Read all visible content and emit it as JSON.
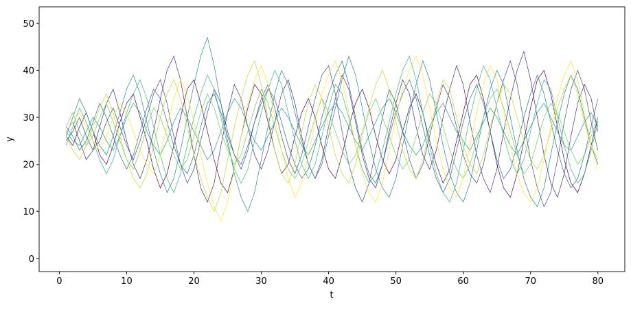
{
  "chart_data": {
    "type": "line",
    "x_label": "t",
    "y_label": "y",
    "xlim": [
      -3,
      84
    ],
    "ylim": [
      -2.8,
      53.5
    ],
    "xticks": [
      0,
      10,
      20,
      30,
      40,
      50,
      60,
      70,
      80
    ],
    "yticks": [
      0,
      10,
      20,
      30,
      40,
      50
    ],
    "grid": false,
    "x": [
      1,
      2,
      3,
      4,
      5,
      6,
      7,
      8,
      9,
      10,
      11,
      12,
      13,
      14,
      15,
      16,
      17,
      18,
      19,
      20,
      21,
      22,
      23,
      24,
      25,
      26,
      27,
      28,
      29,
      30,
      31,
      32,
      33,
      34,
      35,
      36,
      37,
      38,
      39,
      40,
      41,
      42,
      43,
      44,
      45,
      46,
      47,
      48,
      49,
      50,
      51,
      52,
      53,
      54,
      55,
      56,
      57,
      58,
      59,
      60,
      61,
      62,
      63,
      64,
      65,
      66,
      67,
      68,
      69,
      70,
      71,
      72,
      73,
      74,
      75,
      76,
      77,
      78,
      79,
      80
    ],
    "series": [
      {
        "color": "#440154",
        "values": [
          26,
          24,
          28,
          31,
          27,
          22,
          20,
          24,
          29,
          33,
          35,
          30,
          25,
          19,
          15,
          18,
          24,
          30,
          36,
          38,
          33,
          27,
          21,
          16,
          14,
          19,
          26,
          32,
          37,
          35,
          29,
          23,
          18,
          20,
          26,
          31,
          34,
          30,
          24,
          19,
          17,
          22,
          28,
          33,
          36,
          32,
          26,
          21,
          18,
          21,
          27,
          32,
          35,
          31,
          25,
          20,
          16,
          19,
          25,
          31,
          37,
          39,
          34,
          27,
          20,
          15,
          13,
          18,
          25,
          32,
          38,
          40,
          35,
          28,
          21,
          16,
          14,
          18,
          24,
          30
        ]
      },
      {
        "color": "#482878",
        "values": [
          27,
          29,
          25,
          21,
          23,
          28,
          33,
          36,
          31,
          25,
          20,
          17,
          21,
          27,
          34,
          40,
          43,
          38,
          30,
          22,
          15,
          12,
          16,
          24,
          31,
          37,
          34,
          28,
          22,
          19,
          23,
          29,
          35,
          38,
          33,
          26,
          20,
          17,
          21,
          28,
          34,
          39,
          36,
          29,
          22,
          17,
          15,
          20,
          27,
          33,
          38,
          35,
          28,
          22,
          19,
          23,
          30,
          36,
          41,
          37,
          29,
          22,
          17,
          14,
          19,
          27,
          34,
          40,
          44,
          38,
          30,
          22,
          16,
          13,
          18,
          26,
          33,
          37,
          34,
          27
        ]
      },
      {
        "color": "#3e4989",
        "values": [
          25,
          27,
          30,
          26,
          23,
          25,
          29,
          32,
          28,
          24,
          21,
          25,
          30,
          35,
          38,
          33,
          26,
          20,
          16,
          19,
          25,
          31,
          36,
          33,
          27,
          22,
          19,
          23,
          29,
          34,
          37,
          32,
          26,
          21,
          18,
          22,
          28,
          34,
          39,
          41,
          35,
          27,
          20,
          15,
          12,
          16,
          23,
          30,
          36,
          33,
          27,
          21,
          17,
          20,
          26,
          32,
          37,
          34,
          28,
          22,
          18,
          16,
          20,
          27,
          33,
          38,
          42,
          37,
          29,
          21,
          15,
          11,
          14,
          21,
          29,
          36,
          40,
          36,
          29,
          23
        ]
      },
      {
        "color": "#31688e",
        "values": [
          28,
          26,
          23,
          25,
          29,
          33,
          30,
          26,
          22,
          19,
          22,
          27,
          32,
          36,
          34,
          29,
          24,
          20,
          18,
          22,
          28,
          33,
          35,
          31,
          26,
          22,
          20,
          24,
          29,
          33,
          36,
          34,
          29,
          24,
          20,
          17,
          19,
          24,
          30,
          35,
          39,
          42,
          37,
          30,
          23,
          18,
          16,
          20,
          26,
          31,
          35,
          38,
          34,
          28,
          22,
          17,
          14,
          17,
          23,
          29,
          34,
          37,
          33,
          27,
          21,
          17,
          19,
          24,
          30,
          35,
          39,
          35,
          29,
          23,
          18,
          15,
          17,
          22,
          28,
          34
        ]
      },
      {
        "color": "#26828e",
        "values": [
          26,
          30,
          34,
          31,
          27,
          24,
          22,
          26,
          31,
          36,
          39,
          35,
          29,
          23,
          18,
          14,
          17,
          23,
          30,
          37,
          43,
          47,
          41,
          33,
          25,
          18,
          13,
          10,
          14,
          21,
          28,
          35,
          40,
          37,
          31,
          25,
          20,
          17,
          20,
          26,
          32,
          38,
          43,
          39,
          32,
          25,
          19,
          15,
          13,
          17,
          24,
          31,
          37,
          42,
          38,
          31,
          24,
          18,
          14,
          12,
          16,
          23,
          30,
          36,
          40,
          37,
          30,
          23,
          17,
          13,
          11,
          15,
          22,
          29,
          35,
          39,
          36,
          30,
          24,
          20
        ]
      },
      {
        "color": "#1f9e89",
        "values": [
          27,
          25,
          24,
          27,
          30,
          28,
          25,
          23,
          26,
          30,
          33,
          31,
          27,
          24,
          22,
          25,
          29,
          32,
          30,
          27,
          24,
          21,
          23,
          27,
          31,
          34,
          32,
          28,
          25,
          23,
          26,
          29,
          32,
          30,
          27,
          24,
          22,
          25,
          28,
          31,
          33,
          31,
          28,
          25,
          23,
          26,
          29,
          32,
          34,
          31,
          27,
          24,
          22,
          24,
          28,
          31,
          33,
          30,
          27,
          25,
          23,
          26,
          29,
          32,
          30,
          27,
          24,
          22,
          25,
          28,
          31,
          33,
          30,
          27,
          24,
          23,
          26,
          29,
          31,
          28
        ]
      },
      {
        "color": "#35b779",
        "values": [
          24,
          28,
          32,
          29,
          25,
          21,
          18,
          21,
          26,
          31,
          35,
          38,
          34,
          28,
          22,
          17,
          14,
          18,
          24,
          30,
          35,
          39,
          36,
          30,
          24,
          19,
          16,
          19,
          25,
          31,
          36,
          40,
          37,
          31,
          25,
          20,
          17,
          20,
          26,
          32,
          37,
          35,
          30,
          24,
          19,
          16,
          18,
          23,
          29,
          35,
          40,
          43,
          38,
          31,
          24,
          18,
          14,
          12,
          16,
          23,
          30,
          36,
          41,
          38,
          32,
          26,
          21,
          18,
          21,
          27,
          33,
          38,
          36,
          30,
          24,
          19,
          16,
          18,
          23,
          29
        ]
      },
      {
        "color": "#6ece58",
        "values": [
          28,
          31,
          27,
          24,
          26,
          30,
          33,
          29,
          25,
          21,
          19,
          23,
          28,
          32,
          30,
          26,
          22,
          19,
          21,
          26,
          31,
          35,
          32,
          27,
          23,
          20,
          22,
          27,
          32,
          36,
          33,
          28,
          23,
          19,
          17,
          20,
          25,
          30,
          34,
          31,
          27,
          23,
          20,
          22,
          27,
          31,
          34,
          30,
          26,
          22,
          19,
          21,
          26,
          31,
          35,
          33,
          28,
          23,
          19,
          17,
          20,
          25,
          30,
          34,
          36,
          32,
          27,
          22,
          18,
          20,
          25,
          30,
          33,
          31,
          27,
          23,
          20,
          22,
          26,
          30
        ]
      },
      {
        "color": "#b5de2b",
        "values": [
          26,
          23,
          21,
          24,
          28,
          32,
          35,
          31,
          26,
          21,
          17,
          15,
          18,
          24,
          30,
          35,
          38,
          34,
          28,
          22,
          17,
          13,
          10,
          14,
          21,
          28,
          34,
          39,
          42,
          37,
          30,
          23,
          18,
          16,
          20,
          27,
          33,
          37,
          34,
          28,
          22,
          18,
          16,
          20,
          26,
          32,
          37,
          40,
          36,
          29,
          23,
          19,
          17,
          21,
          27,
          33,
          38,
          36,
          30,
          24,
          20,
          18,
          22,
          28,
          33,
          37,
          35,
          30,
          25,
          21,
          19,
          22,
          27,
          32,
          36,
          39,
          35,
          29,
          24,
          21
        ]
      },
      {
        "color": "#fde725",
        "values": [
          27,
          29,
          31,
          28,
          25,
          23,
          26,
          30,
          33,
          31,
          27,
          23,
          20,
          18,
          22,
          28,
          34,
          38,
          35,
          29,
          22,
          16,
          11,
          8,
          12,
          19,
          26,
          33,
          38,
          41,
          37,
          30,
          23,
          17,
          13,
          16,
          22,
          29,
          35,
          39,
          42,
          38,
          31,
          24,
          18,
          14,
          12,
          16,
          23,
          30,
          36,
          40,
          43,
          39,
          32,
          25,
          19,
          15,
          13,
          17,
          24,
          31,
          37,
          41,
          38,
          31,
          24,
          18,
          14,
          12,
          15,
          21,
          28,
          34,
          39,
          42,
          38,
          31,
          24,
          19
        ]
      }
    ]
  }
}
